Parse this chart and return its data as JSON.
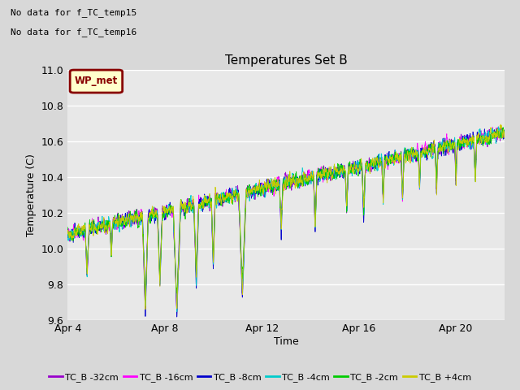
{
  "title": "Temperatures Set B",
  "xlabel": "Time",
  "ylabel": "Temperature (C)",
  "ylim": [
    9.6,
    11.0
  ],
  "yticks": [
    9.6,
    9.8,
    10.0,
    10.2,
    10.4,
    10.6,
    10.8,
    11.0
  ],
  "note_lines": [
    "No data for f_TC_temp15",
    "No data for f_TC_temp16"
  ],
  "wp_met_label": "WP_met",
  "legend_entries": [
    {
      "label": "TC_B -32cm",
      "color": "#9900cc"
    },
    {
      "label": "TC_B -16cm",
      "color": "#ff00ff"
    },
    {
      "label": "TC_B -8cm",
      "color": "#0000cc"
    },
    {
      "label": "TC_B -4cm",
      "color": "#00cccc"
    },
    {
      "label": "TC_B -2cm",
      "color": "#00cc00"
    },
    {
      "label": "TC_B +4cm",
      "color": "#cccc00"
    }
  ],
  "bg_color": "#d8d8d8",
  "plot_bg_color": "#e8e8e8",
  "start_day": 4,
  "end_day": 22,
  "n_points": 3000,
  "seed": 42
}
